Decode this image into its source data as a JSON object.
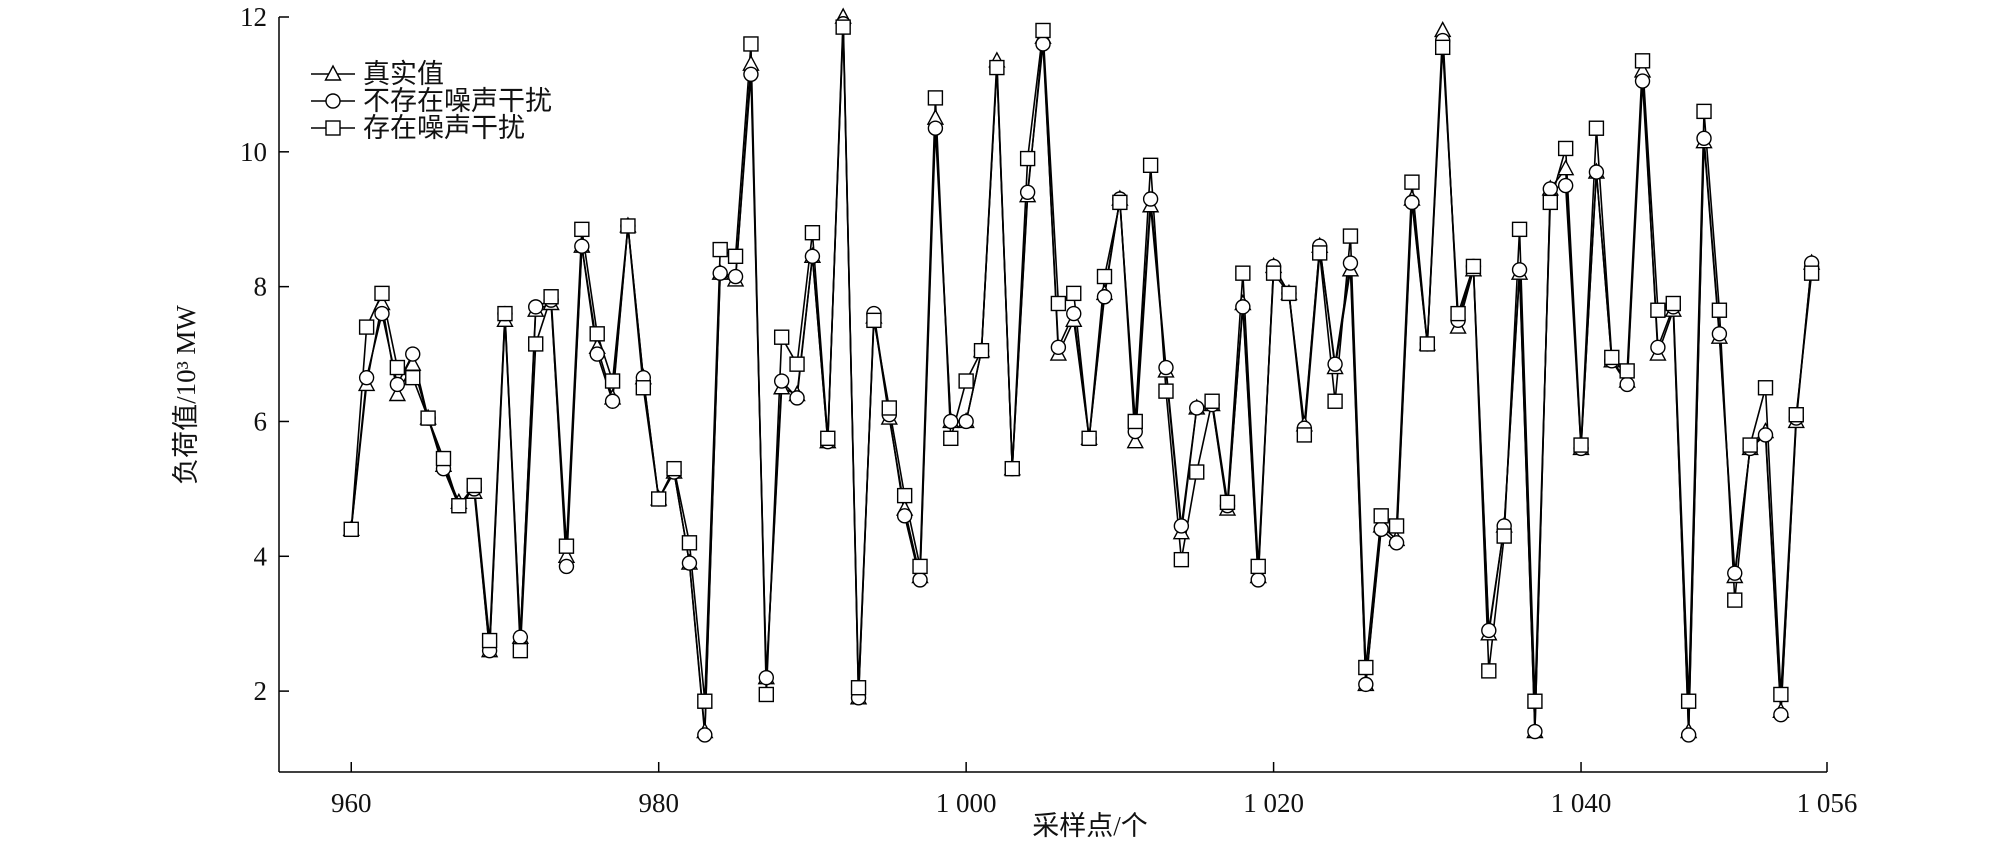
{
  "chart_data": {
    "type": "line",
    "xlabel": "采样点/个",
    "ylabel": "负荷值/10³ MW",
    "x": [
      960,
      961,
      962,
      963,
      964,
      965,
      966,
      967,
      968,
      969,
      970,
      971,
      972,
      973,
      974,
      975,
      976,
      977,
      978,
      979,
      980,
      981,
      982,
      983,
      984,
      985,
      986,
      987,
      988,
      989,
      990,
      991,
      992,
      993,
      994,
      995,
      996,
      997,
      998,
      999,
      1000,
      1001,
      1002,
      1003,
      1004,
      1005,
      1006,
      1007,
      1008,
      1009,
      1010,
      1011,
      1012,
      1013,
      1014,
      1015,
      1016,
      1017,
      1018,
      1019,
      1020,
      1021,
      1022,
      1023,
      1024,
      1025,
      1026,
      1027,
      1028,
      1029,
      1030,
      1031,
      1032,
      1033,
      1034,
      1035,
      1036,
      1037,
      1038,
      1039,
      1040,
      1041,
      1042,
      1043,
      1044,
      1045,
      1046,
      1047,
      1048,
      1049,
      1050,
      1051,
      1052,
      1053,
      1054,
      1055
    ],
    "series": [
      {
        "name": "真实值",
        "color": "#000000",
        "marker": "triangle",
        "values": [
          4.4,
          6.55,
          7.75,
          6.4,
          6.85,
          6.05,
          5.35,
          4.8,
          4.95,
          2.6,
          7.5,
          2.8,
          7.65,
          7.75,
          4.0,
          8.6,
          7.1,
          6.35,
          8.9,
          6.65,
          4.85,
          5.25,
          3.9,
          1.4,
          8.2,
          8.1,
          11.3,
          2.2,
          6.5,
          6.4,
          8.45,
          5.7,
          12.0,
          1.9,
          7.55,
          6.05,
          4.7,
          3.7,
          10.5,
          6.0,
          6.0,
          7.05,
          11.35,
          5.3,
          9.35,
          11.7,
          7.0,
          7.5,
          5.75,
          7.9,
          9.3,
          5.7,
          9.2,
          6.75,
          4.35,
          6.2,
          6.25,
          4.7,
          7.75,
          3.7,
          8.3,
          7.9,
          5.95,
          8.6,
          6.8,
          8.25,
          2.1,
          4.45,
          4.25,
          9.3,
          7.15,
          11.8,
          7.4,
          8.25,
          2.85,
          4.45,
          8.2,
          1.4,
          9.45,
          9.75,
          5.6,
          9.7,
          6.9,
          6.6,
          11.2,
          7.0,
          7.65,
          1.4,
          10.15,
          7.25,
          3.7,
          5.6,
          5.85,
          1.7,
          6.0,
          8.35
        ]
      },
      {
        "name": "不存在噪声干扰",
        "color": "#000000",
        "marker": "circle",
        "values": [
          4.4,
          6.65,
          7.6,
          6.55,
          7.0,
          6.05,
          5.3,
          4.75,
          5.0,
          2.6,
          7.6,
          2.8,
          7.7,
          7.8,
          3.85,
          8.6,
          7.0,
          6.3,
          8.9,
          6.65,
          4.85,
          5.25,
          3.9,
          1.35,
          8.2,
          8.15,
          11.15,
          2.2,
          6.6,
          6.35,
          8.45,
          5.7,
          11.9,
          1.9,
          7.6,
          6.1,
          4.6,
          3.65,
          10.35,
          6.0,
          6.0,
          7.05,
          11.25,
          5.3,
          9.4,
          11.6,
          7.1,
          7.6,
          5.75,
          7.85,
          9.3,
          5.85,
          9.3,
          6.8,
          4.45,
          6.2,
          6.25,
          4.75,
          7.7,
          3.65,
          8.3,
          7.9,
          5.9,
          8.6,
          6.85,
          8.35,
          2.1,
          4.4,
          4.2,
          9.25,
          7.15,
          11.65,
          7.5,
          8.3,
          2.9,
          4.45,
          8.25,
          1.4,
          9.45,
          9.5,
          5.6,
          9.7,
          6.9,
          6.55,
          11.05,
          7.1,
          7.7,
          1.35,
          10.2,
          7.3,
          3.75,
          5.6,
          5.8,
          1.65,
          6.05,
          8.35
        ]
      },
      {
        "name": "存在噪声干扰",
        "color": "#000000",
        "marker": "square",
        "values": [
          4.4,
          7.4,
          7.9,
          6.8,
          6.65,
          6.05,
          5.45,
          4.75,
          5.05,
          2.75,
          7.6,
          2.6,
          7.15,
          7.85,
          4.15,
          8.85,
          7.3,
          6.6,
          8.9,
          6.5,
          4.85,
          5.3,
          4.2,
          1.85,
          8.55,
          8.45,
          11.6,
          1.95,
          7.25,
          6.85,
          8.8,
          5.75,
          11.85,
          2.05,
          7.5,
          6.2,
          4.9,
          3.85,
          10.8,
          5.75,
          6.6,
          7.05,
          11.25,
          5.3,
          9.9,
          11.8,
          7.75,
          7.9,
          5.75,
          8.15,
          9.25,
          6.0,
          9.8,
          6.45,
          3.95,
          5.25,
          6.3,
          4.8,
          8.2,
          3.85,
          8.2,
          7.9,
          5.8,
          8.5,
          6.3,
          8.75,
          2.35,
          4.6,
          4.45,
          9.55,
          7.15,
          11.55,
          7.6,
          8.3,
          2.3,
          4.3,
          8.85,
          1.85,
          9.25,
          10.05,
          5.65,
          10.35,
          6.95,
          6.75,
          11.35,
          7.65,
          7.75,
          1.85,
          10.6,
          7.65,
          3.35,
          5.65,
          6.5,
          1.95,
          6.1,
          8.2
        ]
      }
    ],
    "xlim": [
      955.3,
      1056
    ],
    "ylim": [
      0.8,
      12
    ],
    "xticks": [
      960,
      980,
      {
        "value": 1000,
        "label": "1 000"
      },
      {
        "value": 1020,
        "label": "1 020"
      },
      {
        "value": 1040,
        "label": "1 040"
      },
      {
        "value": 1056,
        "label": "1 056"
      }
    ],
    "yticks": [
      2,
      4,
      6,
      8,
      10,
      12
    ],
    "grid": false,
    "legend": "upper left"
  }
}
